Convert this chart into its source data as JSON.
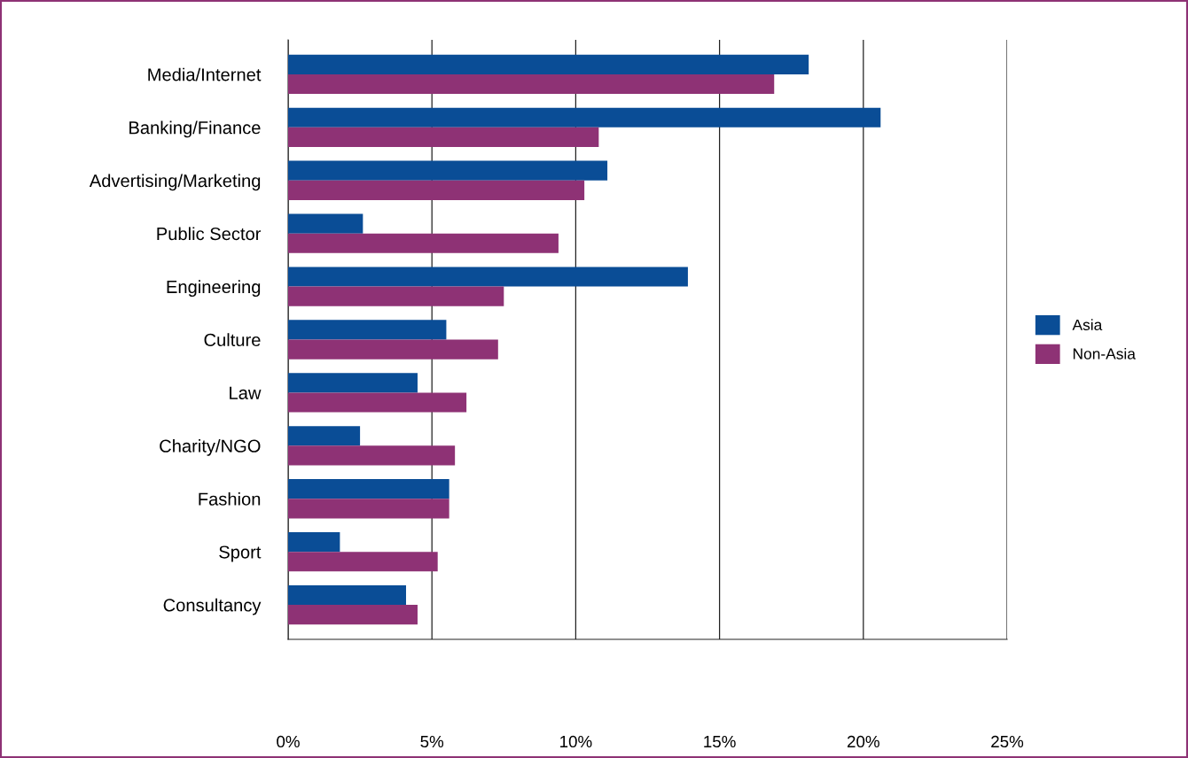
{
  "chart_data": {
    "type": "bar",
    "orientation": "horizontal",
    "categories": [
      "Media/Internet",
      "Banking/Finance",
      "Advertising/Marketing",
      "Public Sector",
      "Engineering",
      "Culture",
      "Law",
      "Charity/NGO",
      "Fashion",
      "Sport",
      "Consultancy"
    ],
    "series": [
      {
        "name": "Asia",
        "color": "#0a4d96",
        "values": [
          18.1,
          20.6,
          11.1,
          2.6,
          13.9,
          5.5,
          4.5,
          2.5,
          5.6,
          1.8,
          4.1
        ]
      },
      {
        "name": "Non-Asia",
        "color": "#8e3275",
        "values": [
          16.9,
          10.8,
          10.3,
          9.4,
          7.5,
          7.3,
          6.2,
          5.8,
          5.6,
          5.2,
          4.5
        ]
      }
    ],
    "xlim": [
      0,
      25
    ],
    "xticks": [
      {
        "value": 0,
        "label": "0%"
      },
      {
        "value": 5,
        "label": "5%"
      },
      {
        "value": 10,
        "label": "10%"
      },
      {
        "value": 15,
        "label": "15%"
      },
      {
        "value": 20,
        "label": "20%"
      },
      {
        "value": 25,
        "label": "25%"
      }
    ],
    "grid": "x",
    "legend": "right"
  }
}
